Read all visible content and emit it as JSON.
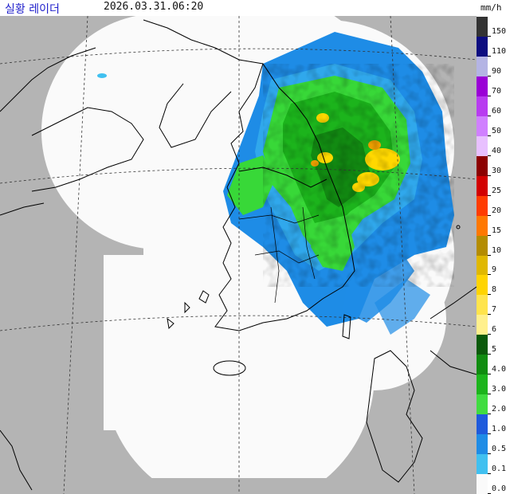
{
  "header": {
    "title": "실황 레이더",
    "timestamp": "2026.03.31.06:20",
    "unit": "mm/h"
  },
  "colors": {
    "outside_coverage": "#b4b4b4",
    "no_echo": "#fafafa",
    "coastline": "#000000",
    "grid": "#333333",
    "rain_light_blue": "#1e8ce6",
    "rain_green": "#38d838",
    "rain_dark_green": "#128a12",
    "rain_yellow": "#ffd800",
    "rain_orange": "#f0a000"
  },
  "legend": {
    "items": [
      {
        "label": "150",
        "color": "#333333"
      },
      {
        "label": "110",
        "color": "#0c0c80"
      },
      {
        "label": "90",
        "color": "#b4b4e4"
      },
      {
        "label": "70",
        "color": "#9a00d6"
      },
      {
        "label": "60",
        "color": "#b83cf0"
      },
      {
        "label": "50",
        "color": "#d080ff"
      },
      {
        "label": "40",
        "color": "#e8c0ff"
      },
      {
        "label": "30",
        "color": "#8c0000"
      },
      {
        "label": "25",
        "color": "#d20000"
      },
      {
        "label": "20",
        "color": "#ff3c00"
      },
      {
        "label": "15",
        "color": "#ff7800"
      },
      {
        "label": "10",
        "color": "#b48c00"
      },
      {
        "label": "9",
        "color": "#e0b800"
      },
      {
        "label": "8",
        "color": "#ffd400"
      },
      {
        "label": "7",
        "color": "#ffe44c"
      },
      {
        "label": "6",
        "color": "#fff08c"
      },
      {
        "label": "5",
        "color": "#0a5a0a"
      },
      {
        "label": "4.0",
        "color": "#108c10"
      },
      {
        "label": "3.0",
        "color": "#1cb41c"
      },
      {
        "label": "2.0",
        "color": "#40dc40"
      },
      {
        "label": "1.0",
        "color": "#1e5adc"
      },
      {
        "label": "0.5",
        "color": "#1e8ce6"
      },
      {
        "label": "0.1",
        "color": "#40c0f0"
      },
      {
        "label": "0.0",
        "color": "#fafafa"
      }
    ]
  }
}
